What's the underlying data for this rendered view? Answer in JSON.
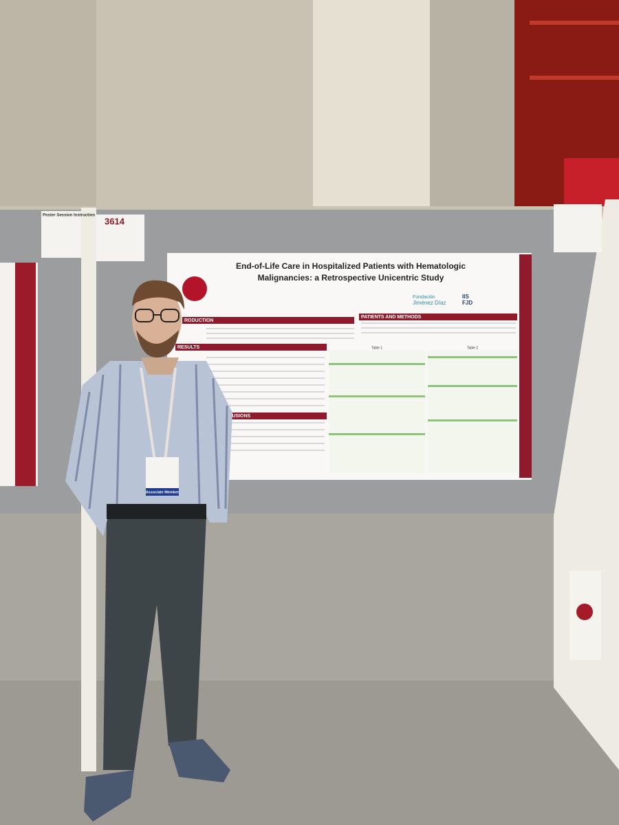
{
  "scene": {
    "board_number": "3614",
    "instructions_label": "Poster Session Instruction",
    "poster": {
      "title_line1": "End-of-Life Care in Hospitalized Patients with Hematologic",
      "title_line2": "Malignancies: a Retrospective Unicentric Study",
      "sections": [
        "RODUCTION",
        "RESULTS",
        "CLUSIONS",
        "PATIENTS AND METHODS"
      ],
      "tables": [
        "Table 1",
        "Table 2"
      ],
      "logo_line1": "Fundación",
      "logo_line2": "Jiménez Díaz",
      "logo_iis": "IIS",
      "logo_fjd": "FJD"
    },
    "badge": "Associate Member"
  }
}
